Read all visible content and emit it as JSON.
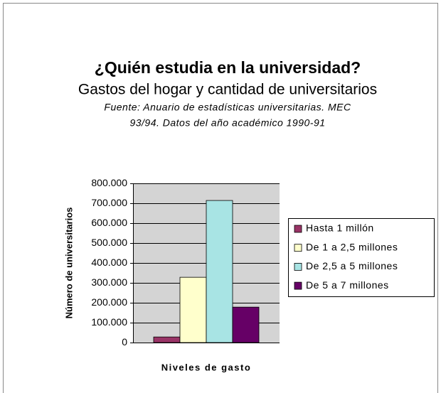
{
  "chart_data": {
    "type": "bar",
    "title": "¿Quién estudia en la universidad?",
    "subtitle": "Gastos del hogar y cantidad de universitarios",
    "source": [
      "Fuente: Anuario de estadísticas universitarias. MEC",
      "93/94. Datos del año académico 1990-91"
    ],
    "x_label": "Niveles de gasto",
    "y_label": "Número de universitarios",
    "categories": [
      null
    ],
    "series": [
      {
        "name": "Hasta 1 millón",
        "color": "#993366",
        "values": [
          28000
        ]
      },
      {
        "name": "De 1 a 2,5 millones",
        "color": "#ffffcc",
        "values": [
          328000
        ]
      },
      {
        "name": "De 2,5 a 5 millones",
        "color": "#a8e4e4",
        "values": [
          714000
        ]
      },
      {
        "name": "De 5 a 7 millones",
        "color": "#660066",
        "values": [
          178000
        ]
      }
    ],
    "ylim": [
      0,
      800000
    ],
    "yticks": [
      0,
      {
        "value": 100000,
        "label": "100.000"
      },
      {
        "value": 200000,
        "label": "200.000"
      },
      {
        "value": 300000,
        "label": "300.000"
      },
      {
        "value": 400000,
        "label": "400.000"
      },
      {
        "value": 500000,
        "label": "500.000"
      },
      {
        "value": 600000,
        "label": "600.000"
      },
      {
        "value": 700000,
        "label": "700.000"
      },
      {
        "value": 800000,
        "label": "800.000"
      }
    ],
    "grid": true,
    "legend": "right"
  }
}
